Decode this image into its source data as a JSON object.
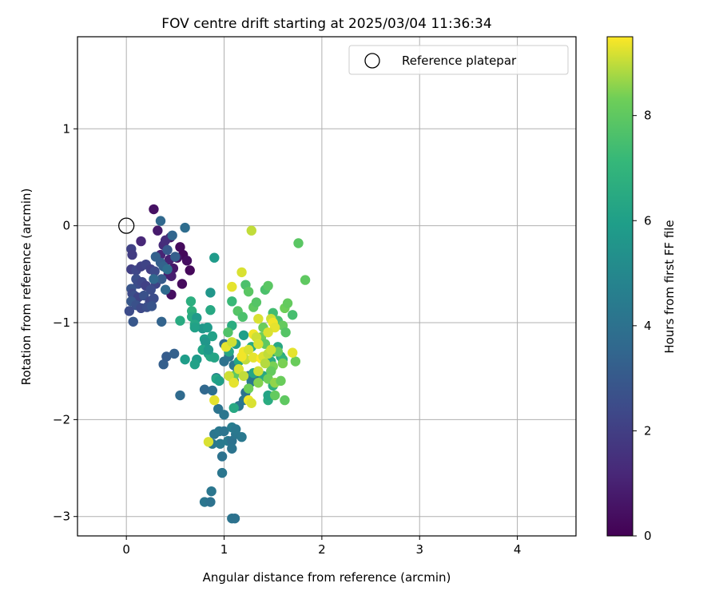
{
  "chart_data": {
    "type": "scatter",
    "title": "FOV centre drift starting at 2025/03/04 11:36:34",
    "xlabel": "Angular distance from reference (arcmin)",
    "ylabel": "Rotation from reference (arcmin)",
    "xlim": [
      -0.5,
      4.6
    ],
    "ylim": [
      -3.2,
      1.95
    ],
    "x_ticks": [
      0,
      1,
      2,
      3,
      4
    ],
    "x_tick_labels": [
      "0",
      "1",
      "2",
      "3",
      "4"
    ],
    "y_ticks": [
      -3,
      -2,
      -1,
      0,
      1
    ],
    "y_tick_labels": [
      "−3",
      "−2",
      "−1",
      "0",
      "1"
    ],
    "grid": true,
    "legend": {
      "placement": "top-right",
      "entries": [
        "Reference platepar"
      ]
    },
    "reference_point": {
      "name": "Reference platepar",
      "x": 0.0,
      "y": 0.0
    },
    "colorbar": {
      "label": "Hours from first FF file",
      "colormap": "viridis",
      "range": [
        0,
        9.5
      ],
      "ticks": [
        0,
        2,
        4,
        6,
        8
      ],
      "tick_labels": [
        "0",
        "2",
        "4",
        "6",
        "8"
      ]
    },
    "series": [
      {
        "name": "Hours from first FF file",
        "points": [
          [
            0.28,
            0.17,
            0.5
          ],
          [
            0.32,
            -0.05,
            0.8
          ],
          [
            0.45,
            -0.12,
            0.6
          ],
          [
            0.55,
            -0.22,
            0.3
          ],
          [
            0.58,
            -0.3,
            0.2
          ],
          [
            0.62,
            -0.36,
            0.4
          ],
          [
            0.65,
            -0.46,
            0.2
          ],
          [
            0.48,
            -0.44,
            0.7
          ],
          [
            0.43,
            -0.5,
            1.0
          ],
          [
            0.46,
            -0.52,
            0.9
          ],
          [
            0.52,
            -0.33,
            0.5
          ],
          [
            0.57,
            -0.6,
            0.3
          ],
          [
            0.46,
            -0.71,
            0.4
          ],
          [
            0.15,
            -0.16,
            1.2
          ],
          [
            0.35,
            -0.3,
            1.1
          ],
          [
            0.38,
            -0.2,
            1.3
          ],
          [
            0.4,
            -0.15,
            1.4
          ],
          [
            0.44,
            -0.35,
            1.0
          ],
          [
            0.05,
            -0.24,
            2.1
          ],
          [
            0.06,
            -0.3,
            1.9
          ],
          [
            0.05,
            -0.45,
            2.0
          ],
          [
            0.1,
            -0.46,
            2.3
          ],
          [
            0.15,
            -0.42,
            2.1
          ],
          [
            0.2,
            -0.4,
            2.2
          ],
          [
            0.25,
            -0.45,
            2.0
          ],
          [
            0.29,
            -0.47,
            2.4
          ],
          [
            0.3,
            -0.6,
            2.2
          ],
          [
            0.1,
            -0.55,
            2.6
          ],
          [
            0.12,
            -0.6,
            2.5
          ],
          [
            0.16,
            -0.58,
            2.3
          ],
          [
            0.2,
            -0.62,
            2.1
          ],
          [
            0.25,
            -0.66,
            2.5
          ],
          [
            0.05,
            -0.65,
            2.8
          ],
          [
            0.06,
            -0.7,
            2.4
          ],
          [
            0.08,
            -0.72,
            2.6
          ],
          [
            0.12,
            -0.74,
            2.2
          ],
          [
            0.18,
            -0.72,
            2.7
          ],
          [
            0.24,
            -0.78,
            2.3
          ],
          [
            0.28,
            -0.75,
            2.5
          ],
          [
            0.05,
            -0.78,
            2.9
          ],
          [
            0.1,
            -0.82,
            2.7
          ],
          [
            0.15,
            -0.85,
            2.4
          ],
          [
            0.21,
            -0.84,
            2.6
          ],
          [
            0.26,
            -0.83,
            2.8
          ],
          [
            0.03,
            -0.88,
            2.5
          ],
          [
            0.07,
            -0.99,
            2.9
          ],
          [
            0.35,
            -0.38,
            3.2
          ],
          [
            0.38,
            -0.42,
            3.4
          ],
          [
            0.35,
            0.05,
            3.6
          ],
          [
            0.3,
            -0.32,
            3.3
          ],
          [
            0.36,
            -0.55,
            3.1
          ],
          [
            0.42,
            -0.25,
            3.0
          ],
          [
            0.47,
            -0.1,
            3.5
          ],
          [
            0.5,
            -0.32,
            3.2
          ],
          [
            0.4,
            -0.66,
            3.7
          ],
          [
            0.36,
            -0.99,
            3.4
          ],
          [
            0.6,
            -0.02,
            3.8
          ],
          [
            0.28,
            -0.55,
            3.6
          ],
          [
            0.42,
            -0.45,
            3.9
          ],
          [
            0.38,
            -1.43,
            3.2
          ],
          [
            0.41,
            -1.35,
            3.1
          ],
          [
            0.49,
            -1.32,
            3.3
          ],
          [
            0.55,
            -1.75,
            3.7
          ],
          [
            0.88,
            -1.7,
            3.9
          ],
          [
            0.8,
            -1.69,
            3.6
          ],
          [
            1.0,
            -1.22,
            3.8
          ],
          [
            1.0,
            -1.4,
            4.0
          ],
          [
            1.05,
            -1.35,
            4.1
          ],
          [
            1.1,
            -1.44,
            4.2
          ],
          [
            1.14,
            -1.5,
            4.0
          ],
          [
            1.1,
            -1.6,
            3.9
          ],
          [
            1.25,
            -1.55,
            4.1
          ],
          [
            1.28,
            -1.61,
            4.3
          ],
          [
            1.32,
            -1.58,
            4.2
          ],
          [
            1.22,
            -1.72,
            4.0
          ],
          [
            1.2,
            -1.8,
            4.3
          ],
          [
            1.15,
            -1.86,
            4.2
          ],
          [
            0.92,
            -1.57,
            4.4
          ],
          [
            0.94,
            -1.89,
            4.1
          ],
          [
            1.0,
            -1.95,
            4.2
          ],
          [
            0.9,
            -2.15,
            4.2
          ],
          [
            0.95,
            -2.12,
            4.3
          ],
          [
            1.0,
            -2.12,
            4.1
          ],
          [
            1.04,
            -2.22,
            4.4
          ],
          [
            1.08,
            -2.22,
            4.0
          ],
          [
            1.12,
            -2.15,
            4.2
          ],
          [
            1.18,
            -2.18,
            4.3
          ],
          [
            1.08,
            -2.08,
            4.5
          ],
          [
            1.12,
            -2.1,
            4.3
          ],
          [
            1.08,
            -2.3,
            4.1
          ],
          [
            0.88,
            -2.25,
            4.2
          ],
          [
            0.96,
            -2.25,
            4.4
          ],
          [
            0.98,
            -2.38,
            4.0
          ],
          [
            0.98,
            -2.55,
            4.2
          ],
          [
            0.87,
            -2.74,
            4.2
          ],
          [
            0.8,
            -2.85,
            4.2
          ],
          [
            0.86,
            -2.85,
            4.0
          ],
          [
            1.08,
            -3.02,
            4.1
          ],
          [
            1.11,
            -3.02,
            4.0
          ],
          [
            0.9,
            -0.33,
            5.8
          ],
          [
            0.86,
            -0.69,
            5.6
          ],
          [
            0.86,
            -0.87,
            6.4
          ],
          [
            0.66,
            -0.78,
            6.7
          ],
          [
            0.67,
            -0.88,
            6.8
          ],
          [
            0.55,
            -0.98,
            6.5
          ],
          [
            0.67,
            -0.94,
            6.5
          ],
          [
            0.72,
            -0.95,
            5.8
          ],
          [
            0.7,
            -1.02,
            6.3
          ],
          [
            0.78,
            -1.06,
            5.6
          ],
          [
            0.83,
            -1.05,
            5.8
          ],
          [
            0.7,
            -1.05,
            6.1
          ],
          [
            0.8,
            -1.17,
            5.9
          ],
          [
            0.88,
            -1.14,
            6.1
          ],
          [
            1.08,
            -1.03,
            6.6
          ],
          [
            0.81,
            -1.2,
            5.6
          ],
          [
            0.78,
            -1.28,
            6.2
          ],
          [
            0.84,
            -1.32,
            6.0
          ],
          [
            0.86,
            -1.35,
            6.4
          ],
          [
            0.9,
            -1.36,
            6.2
          ],
          [
            0.72,
            -1.38,
            5.8
          ],
          [
            0.7,
            -1.43,
            6.1
          ],
          [
            0.6,
            -1.38,
            5.9
          ],
          [
            0.84,
            -1.28,
            5.7
          ],
          [
            0.92,
            -1.58,
            6.3
          ],
          [
            0.95,
            -1.6,
            6.0
          ],
          [
            1.05,
            -1.3,
            6.3
          ],
          [
            1.12,
            -1.22,
            5.9
          ],
          [
            1.15,
            -1.4,
            6.2
          ],
          [
            1.3,
            -1.52,
            6.3
          ],
          [
            1.4,
            -1.55,
            6.4
          ],
          [
            1.45,
            -1.8,
            6.6
          ],
          [
            1.45,
            -1.75,
            6.2
          ],
          [
            1.5,
            -1.65,
            6.8
          ],
          [
            1.48,
            -1.4,
            6.6
          ],
          [
            1.5,
            -1.3,
            6.2
          ],
          [
            1.55,
            -1.25,
            6.4
          ],
          [
            1.58,
            -1.35,
            6.5
          ],
          [
            1.6,
            -1.38,
            6.9
          ],
          [
            1.28,
            -1.25,
            6.5
          ],
          [
            1.2,
            -1.13,
            6.0
          ],
          [
            1.1,
            -1.88,
            6.4
          ],
          [
            1.08,
            -0.78,
            7.2
          ],
          [
            1.22,
            -0.61,
            7.6
          ],
          [
            1.25,
            -0.68,
            7.9
          ],
          [
            1.14,
            -0.88,
            7.8
          ],
          [
            1.19,
            -0.94,
            7.6
          ],
          [
            1.3,
            -0.84,
            8.0
          ],
          [
            1.33,
            -0.79,
            7.8
          ],
          [
            1.42,
            -0.66,
            7.6
          ],
          [
            1.45,
            -0.62,
            7.9
          ],
          [
            1.5,
            -0.9,
            7.4
          ],
          [
            1.55,
            -0.98,
            7.6
          ],
          [
            1.6,
            -1.03,
            8.1
          ],
          [
            1.63,
            -1.1,
            7.8
          ],
          [
            1.7,
            -0.92,
            7.5
          ],
          [
            1.76,
            -0.18,
            7.9
          ],
          [
            1.83,
            -0.56,
            8.0
          ],
          [
            1.62,
            -0.85,
            8.3
          ],
          [
            1.65,
            -0.8,
            8.1
          ],
          [
            1.4,
            -1.05,
            8.2
          ],
          [
            1.38,
            -1.15,
            8.3
          ],
          [
            1.42,
            -1.22,
            8.0
          ],
          [
            1.55,
            -1.3,
            8.2
          ],
          [
            1.5,
            -1.45,
            8.4
          ],
          [
            1.48,
            -1.5,
            8.1
          ],
          [
            1.45,
            -1.58,
            8.3
          ],
          [
            1.52,
            -1.62,
            8.6
          ],
          [
            1.58,
            -1.6,
            8.2
          ],
          [
            1.62,
            -1.8,
            8.0
          ],
          [
            1.52,
            -1.75,
            8.1
          ],
          [
            1.1,
            -1.55,
            8.0
          ],
          [
            1.04,
            -1.1,
            7.7
          ],
          [
            1.73,
            -1.4,
            8.2
          ],
          [
            1.6,
            -1.42,
            8.4
          ],
          [
            1.35,
            -1.62,
            8.5
          ],
          [
            1.25,
            -1.68,
            8.3
          ],
          [
            1.28,
            -0.05,
            9.0
          ],
          [
            1.18,
            -0.48,
            9.2
          ],
          [
            1.08,
            -0.63,
            9.3
          ],
          [
            1.35,
            -0.96,
            9.2
          ],
          [
            1.48,
            -0.96,
            9.1
          ],
          [
            1.5,
            -1.0,
            9.4
          ],
          [
            1.52,
            -1.05,
            9.3
          ],
          [
            1.45,
            -1.1,
            9.2
          ],
          [
            1.3,
            -1.12,
            9.4
          ],
          [
            1.33,
            -1.15,
            9.1
          ],
          [
            1.02,
            -1.25,
            9.3
          ],
          [
            1.08,
            -1.2,
            9.1
          ],
          [
            1.2,
            -1.3,
            9.4
          ],
          [
            1.25,
            -1.28,
            9.2
          ],
          [
            1.22,
            -1.38,
            9.0
          ],
          [
            1.3,
            -1.36,
            9.3
          ],
          [
            1.38,
            -1.37,
            9.5
          ],
          [
            1.4,
            -1.35,
            9.2
          ],
          [
            1.45,
            -1.32,
            9.0
          ],
          [
            1.48,
            -1.28,
            9.1
          ],
          [
            1.7,
            -1.31,
            9.3
          ],
          [
            1.18,
            -1.35,
            9.4
          ],
          [
            1.15,
            -1.48,
            9.2
          ],
          [
            1.2,
            -1.55,
            9.0
          ],
          [
            1.05,
            -1.55,
            9.1
          ],
          [
            1.1,
            -1.62,
            9.3
          ],
          [
            1.25,
            -1.8,
            9.4
          ],
          [
            1.28,
            -1.83,
            9.2
          ],
          [
            1.35,
            -1.5,
            9.1
          ],
          [
            0.9,
            -1.8,
            9.3
          ],
          [
            0.84,
            -2.23,
            9.2
          ],
          [
            1.35,
            -1.22,
            9.2
          ],
          [
            1.42,
            -1.42,
            8.9
          ]
        ]
      }
    ]
  }
}
